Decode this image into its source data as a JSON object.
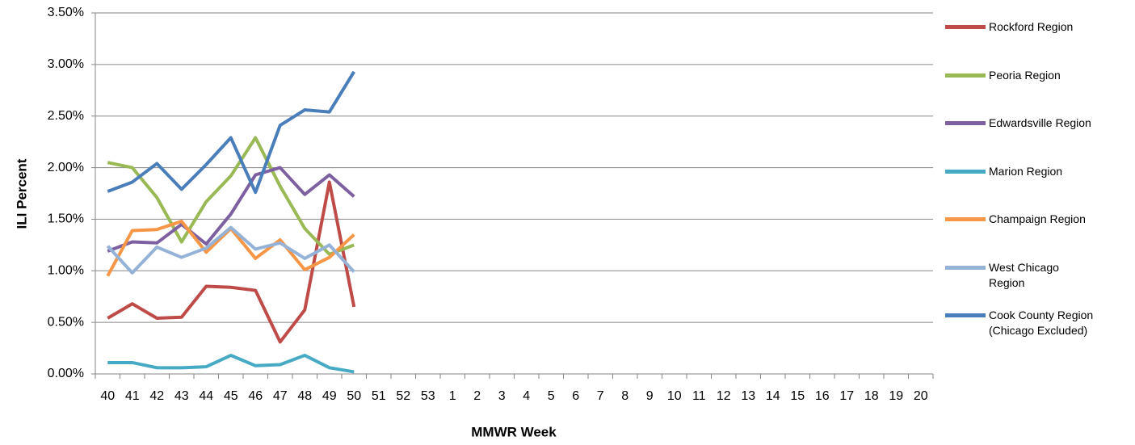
{
  "chart_data": {
    "type": "line",
    "x_label": "MMWR Week",
    "y_label": "ILI Percent",
    "categories": [
      "40",
      "41",
      "42",
      "43",
      "44",
      "45",
      "46",
      "47",
      "48",
      "49",
      "50",
      "51",
      "52",
      "53",
      "1",
      "2",
      "3",
      "4",
      "5",
      "6",
      "7",
      "8",
      "9",
      "10",
      "11",
      "12",
      "13",
      "14",
      "15",
      "16",
      "17",
      "18",
      "19",
      "20"
    ],
    "series": [
      {
        "name": "Rockford Region",
        "color": "#be4b48",
        "values": [
          0.54,
          0.68,
          0.54,
          0.55,
          0.85,
          0.84,
          0.81,
          0.31,
          0.62,
          1.86,
          0.65,
          null,
          null,
          null,
          null,
          null,
          null,
          null,
          null,
          null,
          null,
          null,
          null,
          null,
          null,
          null,
          null,
          null,
          null,
          null,
          null,
          null,
          null,
          null
        ]
      },
      {
        "name": "Peoria Region",
        "color": "#98b954",
        "values": [
          2.05,
          2.0,
          1.71,
          1.28,
          1.67,
          1.92,
          2.29,
          1.82,
          1.41,
          1.16,
          1.25,
          null,
          null,
          null,
          null,
          null,
          null,
          null,
          null,
          null,
          null,
          null,
          null,
          null,
          null,
          null,
          null,
          null,
          null,
          null,
          null,
          null,
          null,
          null
        ]
      },
      {
        "name": "Edwardsville Region",
        "color": "#7d60a0",
        "values": [
          1.19,
          1.28,
          1.27,
          1.45,
          1.26,
          1.55,
          1.93,
          2.0,
          1.74,
          1.93,
          1.72,
          null,
          null,
          null,
          null,
          null,
          null,
          null,
          null,
          null,
          null,
          null,
          null,
          null,
          null,
          null,
          null,
          null,
          null,
          null,
          null,
          null,
          null,
          null
        ]
      },
      {
        "name": "Marion Region",
        "color": "#46aac5",
        "values": [
          0.11,
          0.11,
          0.06,
          0.06,
          0.07,
          0.18,
          0.08,
          0.09,
          0.18,
          0.06,
          0.02,
          null,
          null,
          null,
          null,
          null,
          null,
          null,
          null,
          null,
          null,
          null,
          null,
          null,
          null,
          null,
          null,
          null,
          null,
          null,
          null,
          null,
          null,
          null
        ]
      },
      {
        "name": "Champaign Region",
        "color": "#f79646",
        "values": [
          0.95,
          1.39,
          1.4,
          1.48,
          1.18,
          1.41,
          1.12,
          1.3,
          1.01,
          1.13,
          1.35,
          null,
          null,
          null,
          null,
          null,
          null,
          null,
          null,
          null,
          null,
          null,
          null,
          null,
          null,
          null,
          null,
          null,
          null,
          null,
          null,
          null,
          null,
          null
        ]
      },
      {
        "name": "West Chicago Region",
        "color": "#95b3d7",
        "values": [
          1.24,
          0.98,
          1.23,
          1.13,
          1.22,
          1.42,
          1.21,
          1.27,
          1.12,
          1.25,
          0.99,
          null,
          null,
          null,
          null,
          null,
          null,
          null,
          null,
          null,
          null,
          null,
          null,
          null,
          null,
          null,
          null,
          null,
          null,
          null,
          null,
          null,
          null,
          null
        ]
      },
      {
        "name": "Cook County Region (Chicago Excluded)",
        "color": "#4a7ebb",
        "values": [
          1.77,
          1.86,
          2.04,
          1.79,
          2.03,
          2.29,
          1.76,
          2.41,
          2.56,
          2.54,
          2.93,
          null,
          null,
          null,
          null,
          null,
          null,
          null,
          null,
          null,
          null,
          null,
          null,
          null,
          null,
          null,
          null,
          null,
          null,
          null,
          null,
          null,
          null,
          null
        ]
      }
    ],
    "ylim": [
      0,
      3.5
    ],
    "yticks": [
      {
        "value": 0,
        "label": "0.00%"
      },
      {
        "value": 0.5,
        "label": "0.50%"
      },
      {
        "value": 1,
        "label": "1.00%"
      },
      {
        "value": 1.5,
        "label": "1.50%"
      },
      {
        "value": 2,
        "label": "2.00%"
      },
      {
        "value": 2.5,
        "label": "2.50%"
      },
      {
        "value": 3,
        "label": "3.00%"
      },
      {
        "value": 3.5,
        "label": "3.50%"
      }
    ],
    "grid": true,
    "legend": "right"
  }
}
